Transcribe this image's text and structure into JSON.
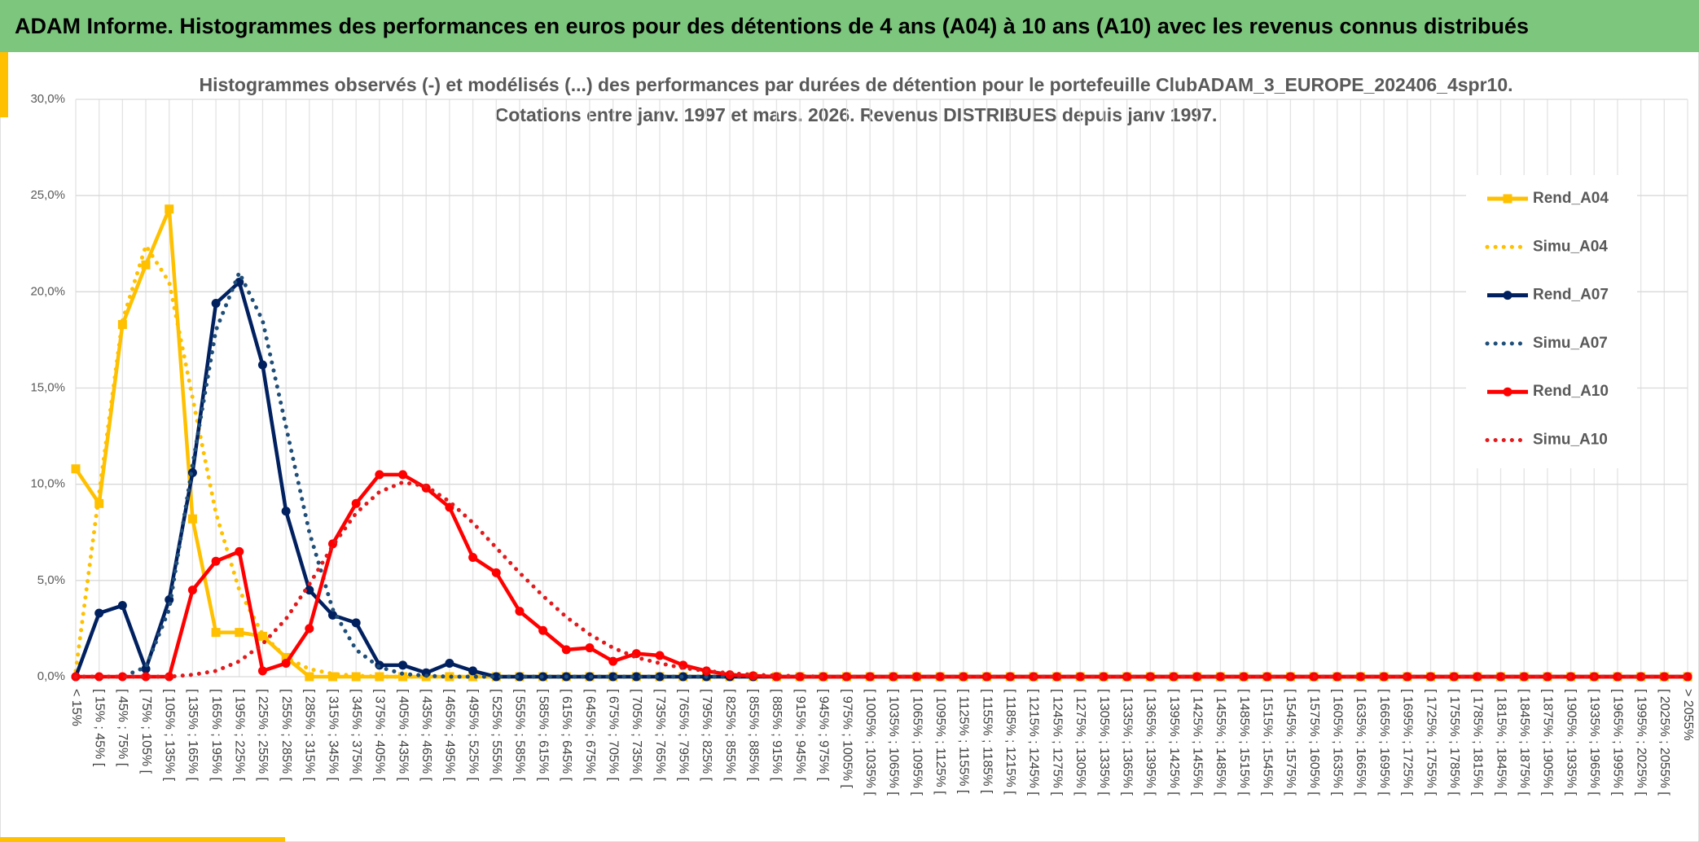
{
  "header": {
    "title": "ADAM Informe. Histogrammes des performances en euros pour des détentions de 4 ans (A04) à 10 ans (A10) avec les revenus connus distribués"
  },
  "chart_data": {
    "type": "line",
    "title": [
      "Histogrammes observés (-) et modélisés (...) des performances par durées de détention pour le portefeuille ClubADAM_3_EUROPE_202406_4spr10.",
      "Cotations entre janv. 1997 et mars. 2026. Revenus DISTRIBUES depuis janv 1997."
    ],
    "categories": [
      "< 15%",
      "[ 15% ; 45% [",
      "[ 45% ; 75% [",
      "[ 75% ; 105% [",
      "[ 105% ; 135% [",
      "[ 135% ; 165% [",
      "[ 165% ; 195% [",
      "[ 195% ; 225% [",
      "[ 225% ; 255% [",
      "[ 255% ; 285% [",
      "[ 285% ; 315% [",
      "[ 315% ; 345% [",
      "[ 345% ; 375% [",
      "[ 375% ; 405% [",
      "[ 405% ; 435% [",
      "[ 435% ; 465% [",
      "[ 465% ; 495% [",
      "[ 495% ; 525% [",
      "[ 525% ; 555% [",
      "[ 555% ; 585% [",
      "[ 585% ; 615% [",
      "[ 615% ; 645% [",
      "[ 645% ; 675% [",
      "[ 675% ; 705% [",
      "[ 705% ; 735% [",
      "[ 735% ; 765% [",
      "[ 765% ; 795% [",
      "[ 795% ; 825% [",
      "[ 825% ; 855% [",
      "[ 855% ; 885% [",
      "[ 885% ; 915% [",
      "[ 915% ; 945% [",
      "[ 945% ; 975% [",
      "[ 975% ; 1005% [",
      "[ 1005% ; 1035% [",
      "[ 1035% ; 1065% [",
      "[ 1065% ; 1095% [",
      "[ 1095% ; 1125% [",
      "[ 1125% ; 1155% [",
      "[ 1155% ; 1185% [",
      "[ 1185% ; 1215% [",
      "[ 1215% ; 1245% [",
      "[ 1245% ; 1275% [",
      "[ 1275% ; 1305% [",
      "[ 1305% ; 1335% [",
      "[ 1335% ; 1365% [",
      "[ 1365% ; 1395% [",
      "[ 1395% ; 1425% [",
      "[ 1425% ; 1455% [",
      "[ 1455% ; 1485% [",
      "[ 1485% ; 1515% [",
      "[ 1515% ; 1545% [",
      "[ 1545% ; 1575% [",
      "[ 1575% ; 1605% [",
      "[ 1605% ; 1635% [",
      "[ 1635% ; 1665% [",
      "[ 1665% ; 1695% [",
      "[ 1695% ; 1725% [",
      "[ 1725% ; 1755% [",
      "[ 1755% ; 1785% [",
      "[ 1785% ; 1815% [",
      "[ 1815% ; 1845% [",
      "[ 1845% ; 1875% [",
      "[ 1875% ; 1905% [",
      "[ 1905% ; 1935% [",
      "[ 1935% ; 1965% [",
      "[ 1965% ; 1995% [",
      "[ 1995% ; 2025% [",
      "[ 2025% ; 2055% [",
      "> 2055%"
    ],
    "series": [
      {
        "name": "Rend_A04",
        "color": "#ffc000",
        "style": "solid",
        "marker": "square",
        "values": [
          10.8,
          9.0,
          18.3,
          21.4,
          24.3,
          8.2,
          2.3,
          2.3,
          2.1,
          1.0,
          0,
          0,
          0,
          0,
          0,
          0,
          0,
          0,
          0,
          0,
          0,
          0,
          0,
          0,
          0,
          0,
          0,
          0,
          0,
          0,
          0,
          0,
          0,
          0,
          0,
          0,
          0,
          0,
          0,
          0,
          0,
          0,
          0,
          0,
          0,
          0,
          0,
          0,
          0,
          0,
          0,
          0,
          0,
          0,
          0,
          0,
          0,
          0,
          0,
          0,
          0,
          0,
          0,
          0,
          0,
          0,
          0,
          0,
          0,
          0
        ]
      },
      {
        "name": "Simu_A04",
        "color": "#ffc000",
        "style": "dotted",
        "marker": "none",
        "values": [
          0.3,
          9.5,
          18.5,
          22.4,
          20.5,
          14.5,
          8.5,
          4.5,
          2.2,
          1.0,
          0.4,
          0.15,
          0.05,
          0,
          0,
          0,
          0,
          0,
          0,
          0,
          0,
          0,
          0,
          0,
          0,
          0,
          0,
          0,
          0,
          0,
          0,
          0,
          0,
          0,
          0,
          0,
          0,
          0,
          0,
          0,
          0,
          0,
          0,
          0,
          0,
          0,
          0,
          0,
          0,
          0,
          0,
          0,
          0,
          0,
          0,
          0,
          0,
          0,
          0,
          0,
          0,
          0,
          0,
          0,
          0,
          0,
          0,
          0,
          0,
          0
        ]
      },
      {
        "name": "Rend_A07",
        "color": "#002060",
        "style": "solid",
        "marker": "circle",
        "values": [
          0,
          3.3,
          3.7,
          0.4,
          4.0,
          10.6,
          19.4,
          20.5,
          16.2,
          8.6,
          4.5,
          3.2,
          2.8,
          0.6,
          0.6,
          0.2,
          0.7,
          0.3,
          0,
          0,
          0,
          0,
          0,
          0,
          0,
          0,
          0,
          0,
          0,
          0,
          0,
          0,
          0,
          0,
          0,
          0,
          0,
          0,
          0,
          0,
          0,
          0,
          0,
          0,
          0,
          0,
          0,
          0,
          0,
          0,
          0,
          0,
          0,
          0,
          0,
          0,
          0,
          0,
          0,
          0,
          0,
          0,
          0,
          0,
          0,
          0,
          0,
          0,
          0,
          0
        ]
      },
      {
        "name": "Simu_A07",
        "color": "#1f4e79",
        "style": "dotted",
        "marker": "none",
        "values": [
          0,
          0,
          0,
          0.5,
          3.5,
          11,
          18,
          21,
          18.5,
          13,
          7.5,
          3.5,
          1.4,
          0.5,
          0.15,
          0.05,
          0,
          0,
          0,
          0,
          0,
          0,
          0,
          0,
          0,
          0,
          0,
          0,
          0,
          0,
          0,
          0,
          0,
          0,
          0,
          0,
          0,
          0,
          0,
          0,
          0,
          0,
          0,
          0,
          0,
          0,
          0,
          0,
          0,
          0,
          0,
          0,
          0,
          0,
          0,
          0,
          0,
          0,
          0,
          0,
          0,
          0,
          0,
          0,
          0,
          0,
          0,
          0,
          0,
          0
        ]
      },
      {
        "name": "Rend_A10",
        "color": "#ff0000",
        "style": "solid",
        "marker": "circle",
        "values": [
          0,
          0,
          0,
          0,
          0,
          4.5,
          6.0,
          6.5,
          0.3,
          0.7,
          2.5,
          6.9,
          9.0,
          10.5,
          10.5,
          9.8,
          8.8,
          6.2,
          5.4,
          3.4,
          2.4,
          1.4,
          1.5,
          0.8,
          1.2,
          1.1,
          0.6,
          0.3,
          0.1,
          0.05,
          0,
          0,
          0,
          0,
          0,
          0,
          0,
          0,
          0,
          0,
          0,
          0,
          0,
          0,
          0,
          0,
          0,
          0,
          0,
          0,
          0,
          0,
          0,
          0,
          0,
          0,
          0,
          0,
          0,
          0,
          0,
          0,
          0,
          0,
          0,
          0,
          0,
          0,
          0,
          0
        ]
      },
      {
        "name": "Simu_A10",
        "color": "#e31a1c",
        "style": "dotted",
        "marker": "none",
        "values": [
          0,
          0,
          0,
          0,
          0,
          0.1,
          0.3,
          0.8,
          1.7,
          3.0,
          4.8,
          6.8,
          8.5,
          9.6,
          10.1,
          9.9,
          9.1,
          8.0,
          6.7,
          5.4,
          4.2,
          3.1,
          2.2,
          1.5,
          1.0,
          0.7,
          0.45,
          0.3,
          0.18,
          0.1,
          0.06,
          0.03,
          0,
          0,
          0,
          0,
          0,
          0,
          0,
          0,
          0,
          0,
          0,
          0,
          0,
          0,
          0,
          0,
          0,
          0,
          0,
          0,
          0,
          0,
          0,
          0,
          0,
          0,
          0,
          0,
          0,
          0,
          0,
          0,
          0,
          0,
          0,
          0,
          0,
          0
        ]
      }
    ],
    "ylim": [
      0,
      30
    ],
    "yticks": [
      {
        "value": 0,
        "label": "0,0%"
      },
      {
        "value": 5,
        "label": "5,0%"
      },
      {
        "value": 10,
        "label": "10,0%"
      },
      {
        "value": 15,
        "label": "15,0%"
      },
      {
        "value": 20,
        "label": "20,0%"
      },
      {
        "value": 25,
        "label": "25,0%"
      },
      {
        "value": 30,
        "label": "30,0%"
      }
    ],
    "grid": true,
    "legend": "right"
  }
}
